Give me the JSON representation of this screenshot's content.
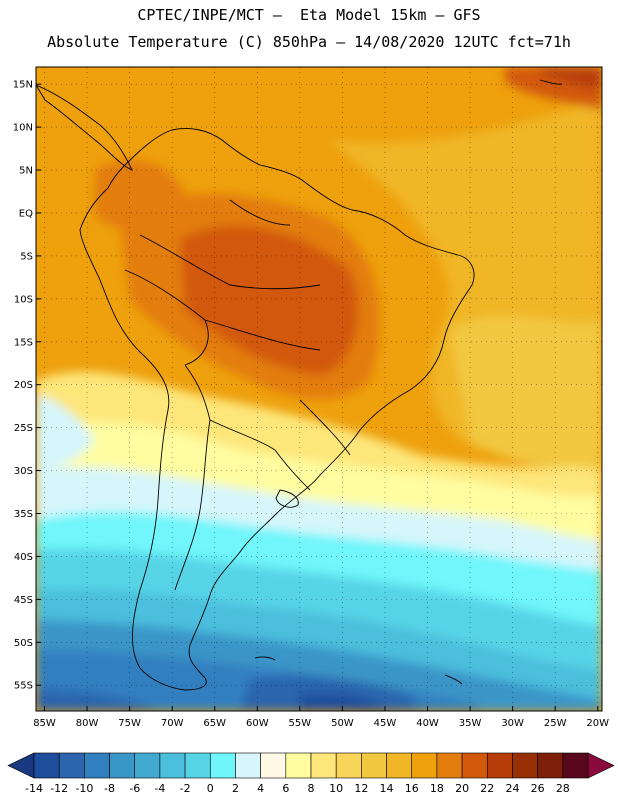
{
  "header": {
    "line1": "CPTEC/INPE/MCT –  Eta Model 15km – GFS",
    "line2": "Absolute Temperature (C) 850hPa – 14/08/2020 12UTC fct=71h"
  },
  "map": {
    "extent": {
      "lon_min": -86,
      "lon_max": -19.5,
      "lat_min": -58,
      "lat_max": 17
    },
    "lat_ticks": [
      {
        "v": 15,
        "label": "15N"
      },
      {
        "v": 10,
        "label": "10N"
      },
      {
        "v": 5,
        "label": "5N"
      },
      {
        "v": 0,
        "label": "EQ"
      },
      {
        "v": -5,
        "label": "5S"
      },
      {
        "v": -10,
        "label": "10S"
      },
      {
        "v": -15,
        "label": "15S"
      },
      {
        "v": -20,
        "label": "20S"
      },
      {
        "v": -25,
        "label": "25S"
      },
      {
        "v": -30,
        "label": "30S"
      },
      {
        "v": -35,
        "label": "35S"
      },
      {
        "v": -40,
        "label": "40S"
      },
      {
        "v": -45,
        "label": "45S"
      },
      {
        "v": -50,
        "label": "50S"
      },
      {
        "v": -55,
        "label": "55S"
      }
    ],
    "lon_ticks": [
      {
        "v": -85,
        "label": "85W"
      },
      {
        "v": -80,
        "label": "80W"
      },
      {
        "v": -75,
        "label": "75W"
      },
      {
        "v": -70,
        "label": "70W"
      },
      {
        "v": -65,
        "label": "65W"
      },
      {
        "v": -60,
        "label": "60W"
      },
      {
        "v": -55,
        "label": "55W"
      },
      {
        "v": -50,
        "label": "50W"
      },
      {
        "v": -45,
        "label": "45W"
      },
      {
        "v": -40,
        "label": "40W"
      },
      {
        "v": -35,
        "label": "35W"
      },
      {
        "v": -30,
        "label": "30W"
      },
      {
        "v": -25,
        "label": "25W"
      },
      {
        "v": -20,
        "label": "20W"
      }
    ]
  },
  "colorbar": {
    "levels": [
      -14,
      -12,
      -10,
      -8,
      -6,
      -4,
      -2,
      0,
      2,
      4,
      6,
      8,
      10,
      12,
      14,
      16,
      18,
      20,
      22,
      24,
      26,
      28
    ],
    "labels": [
      "-14",
      "-12",
      "-10",
      "-8",
      "-6",
      "-4",
      "-2",
      "0",
      "2",
      "4",
      "6",
      "8",
      "10",
      "12",
      "14",
      "16",
      "18",
      "20",
      "22",
      "24",
      "26",
      "28"
    ],
    "colors": [
      "#183880",
      "#1d4d9c",
      "#2a65ad",
      "#327fbf",
      "#3a95c8",
      "#42aad1",
      "#4cbfdd",
      "#56d4e6",
      "#6ff6fb",
      "#d6f6fb",
      "#fff9e6",
      "#fffda0",
      "#fde67a",
      "#f8d45a",
      "#f2c840",
      "#f0b625",
      "#eea00d",
      "#e37d0c",
      "#d2590a",
      "#b63d07",
      "#983005",
      "#7c1e0a",
      "#58081a",
      "#8a0a3c"
    ]
  }
}
